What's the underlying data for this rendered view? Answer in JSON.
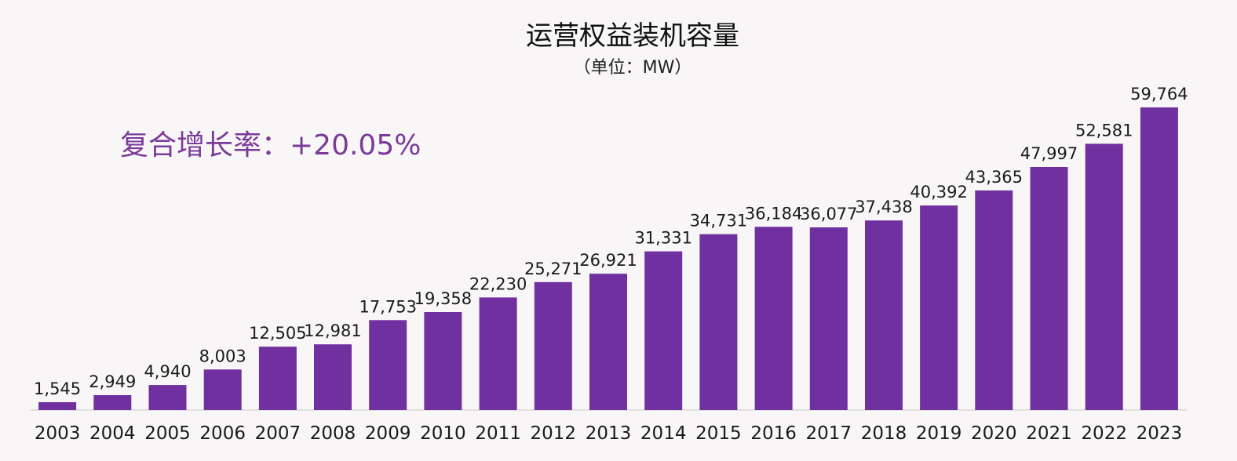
{
  "chart_data": {
    "type": "bar",
    "title": "运营权益装机容量",
    "subtitle": "（单位：MW）",
    "annotation": "复合增长率：+20.05%",
    "categories": [
      "2003",
      "2004",
      "2005",
      "2006",
      "2007",
      "2008",
      "2009",
      "2010",
      "2011",
      "2012",
      "2013",
      "2014",
      "2015",
      "2016",
      "2017",
      "2018",
      "2019",
      "2020",
      "2021",
      "2022",
      "2023"
    ],
    "values": [
      1545,
      2949,
      4940,
      8003,
      12505,
      12981,
      17753,
      19358,
      22230,
      25271,
      26921,
      31331,
      34731,
      36184,
      36077,
      37438,
      40392,
      43365,
      47997,
      52581,
      59764
    ],
    "value_labels": [
      "1,545",
      "2,949",
      "4,940",
      "8,003",
      "12,505",
      "12,981",
      "17,753",
      "19,358",
      "22,230",
      "25,271",
      "26,921",
      "31,331",
      "34,731",
      "36,184",
      "36,077",
      "37,438",
      "40,392",
      "43,365",
      "47,997",
      "52,581",
      "59,764"
    ],
    "ylim": [
      0,
      60000
    ],
    "grid": false,
    "legend": "none",
    "colors": {
      "bar": "#7030a0",
      "annotation": "#7a3a9a",
      "axis": "#d9d9d9",
      "background": "#f8f6f6"
    }
  }
}
